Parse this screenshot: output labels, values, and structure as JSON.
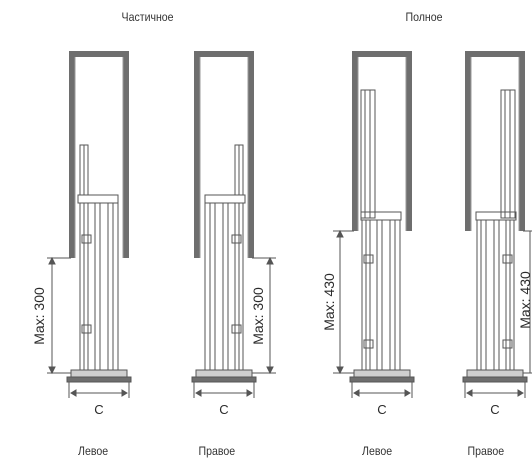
{
  "groups": [
    {
      "title": "Частичное",
      "variants": [
        {
          "label": "Левое",
          "max_label": "Max: 300",
          "width_label": "C"
        },
        {
          "label": "Правое",
          "max_label": "Max: 300",
          "width_label": "C"
        }
      ]
    },
    {
      "title": "Полное",
      "variants": [
        {
          "label": "Левое",
          "max_label": "Max: 430",
          "width_label": "C"
        },
        {
          "label": "Правое",
          "max_label": "Max: 430",
          "width_label": "C"
        }
      ]
    }
  ],
  "colors": {
    "wall": "#6e6e6e",
    "line": "#555555",
    "light_line": "#9a9a9a",
    "text": "#2a2a2a"
  }
}
